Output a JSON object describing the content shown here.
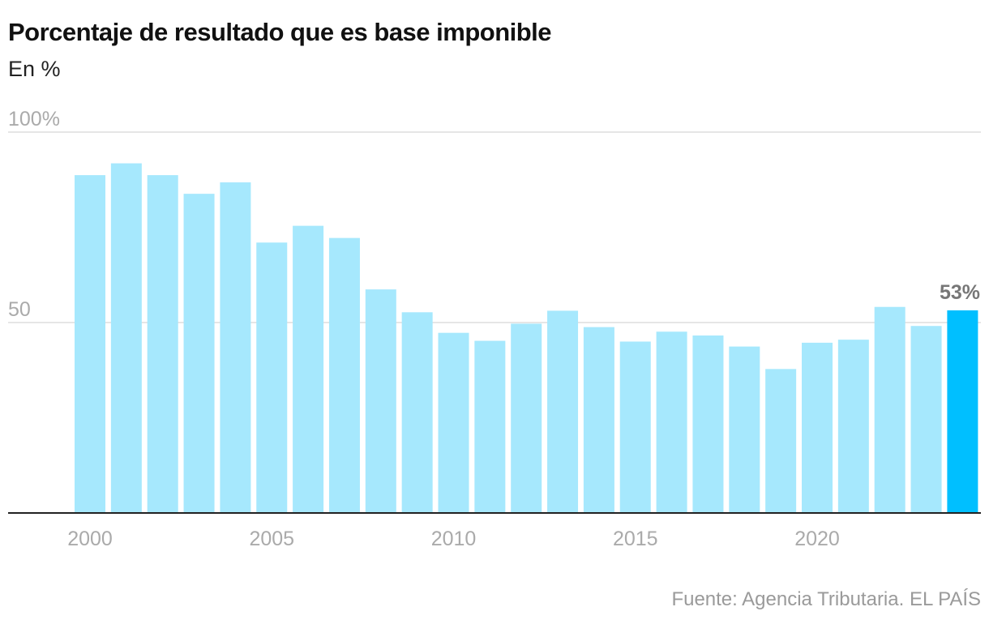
{
  "chart_data": {
    "type": "bar",
    "title": "Porcentaje de resultado que es base imponible",
    "subtitle": "En %",
    "x": [
      2000,
      2001,
      2002,
      2003,
      2004,
      2005,
      2006,
      2007,
      2008,
      2009,
      2010,
      2011,
      2012,
      2013,
      2014,
      2015,
      2016,
      2017,
      2018,
      2019,
      2020,
      2021,
      2022,
      2023,
      2024
    ],
    "values": [
      88.7,
      91.8,
      88.7,
      83.8,
      86.8,
      71.0,
      75.4,
      72.2,
      58.7,
      52.7,
      47.3,
      45.2,
      49.7,
      53.1,
      48.8,
      45.0,
      47.6,
      46.6,
      43.7,
      37.8,
      44.7,
      45.5,
      54.1,
      49.1,
      53.2
    ],
    "highlight_index": 24,
    "highlight_label": "53%",
    "ylim": [
      0,
      100
    ],
    "yticks": [
      {
        "value": 100,
        "label": "100%"
      },
      {
        "value": 50,
        "label": "50"
      }
    ],
    "xticks": [
      {
        "value": 2000,
        "label": "2000"
      },
      {
        "value": 2005,
        "label": "2005"
      },
      {
        "value": 2010,
        "label": "2010"
      },
      {
        "value": 2015,
        "label": "2015"
      },
      {
        "value": 2020,
        "label": "2020"
      }
    ],
    "grid": true,
    "colors": {
      "bar": "#a6e8fd",
      "highlight": "#00bfff",
      "grid": "#dddddd",
      "axis": "#222222"
    }
  },
  "source": {
    "text": "Fuente: Agencia Tributaria",
    "separator": ". ",
    "brand": "EL PAÍS"
  }
}
